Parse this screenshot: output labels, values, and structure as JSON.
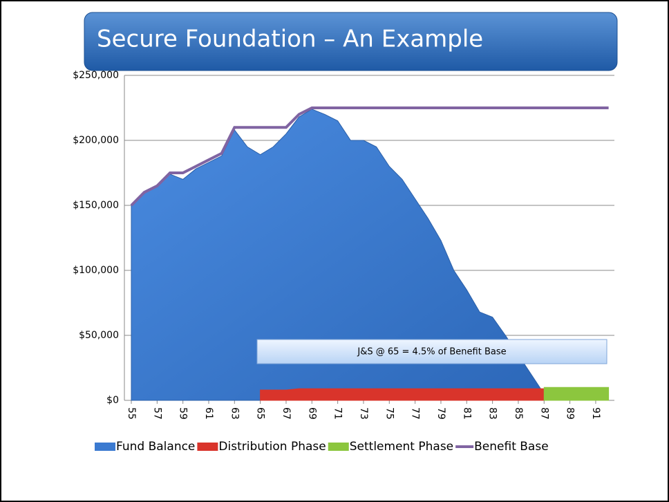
{
  "chart_data": {
    "type": "area",
    "title": "Secure Foundation – An Example",
    "annotation": "J&S @ 65 = 4.5% of Benefit Base",
    "x": [
      55,
      56,
      57,
      58,
      59,
      60,
      61,
      62,
      63,
      64,
      65,
      66,
      67,
      68,
      69,
      70,
      71,
      72,
      73,
      74,
      75,
      76,
      77,
      78,
      79,
      80,
      81,
      82,
      83,
      84,
      85,
      86,
      87,
      88,
      89,
      90,
      91,
      92
    ],
    "xlim": [
      54.5,
      92.5
    ],
    "xticks": [
      55,
      57,
      59,
      61,
      63,
      65,
      67,
      69,
      71,
      73,
      75,
      77,
      79,
      81,
      83,
      85,
      87,
      89,
      91
    ],
    "ylim": [
      0,
      250000
    ],
    "yticks": [
      {
        "value": 0,
        "label": "$0"
      },
      {
        "value": 50000,
        "label": "$50,000"
      },
      {
        "value": 100000,
        "label": "$100,000"
      },
      {
        "value": 150000,
        "label": "$150,000"
      },
      {
        "value": 200000,
        "label": "$200,000"
      },
      {
        "value": 250000,
        "label": "$250,000"
      }
    ],
    "grid": true,
    "legend": "bottom",
    "series": [
      {
        "name": "Fund Balance",
        "color": "#3b7ad0",
        "kind": "area",
        "values": [
          150000,
          160000,
          165000,
          174000,
          170000,
          178000,
          183000,
          188000,
          208000,
          195000,
          189000,
          195000,
          205000,
          218000,
          224000,
          220000,
          215000,
          200000,
          200000,
          195000,
          180000,
          170000,
          155000,
          140000,
          123000,
          100000,
          85000,
          68000,
          64000,
          50000,
          35000,
          20000,
          5000,
          null,
          null,
          null,
          null,
          null
        ]
      },
      {
        "name": "Distribution Phase",
        "color": "#d9342b",
        "kind": "area",
        "values": [
          null,
          null,
          null,
          null,
          null,
          null,
          null,
          null,
          null,
          null,
          8000,
          8000,
          8000,
          9000,
          9000,
          9000,
          9000,
          9000,
          9000,
          9000,
          9000,
          9000,
          9000,
          9000,
          9000,
          9000,
          9000,
          9000,
          9000,
          9000,
          9000,
          9000,
          9000,
          null,
          null,
          null,
          null,
          null
        ]
      },
      {
        "name": "Settlement Phase",
        "color": "#8cc63e",
        "kind": "area",
        "values": [
          null,
          null,
          null,
          null,
          null,
          null,
          null,
          null,
          null,
          null,
          null,
          null,
          null,
          null,
          null,
          null,
          null,
          null,
          null,
          null,
          null,
          null,
          null,
          null,
          null,
          null,
          null,
          null,
          null,
          null,
          null,
          null,
          10000,
          10000,
          10000,
          10000,
          10000,
          10000
        ]
      },
      {
        "name": "Benefit Base",
        "color": "#8064a2",
        "kind": "line",
        "values": [
          150000,
          160000,
          165000,
          175000,
          175000,
          180000,
          185000,
          190000,
          210000,
          210000,
          210000,
          210000,
          210000,
          220000,
          225000,
          225000,
          225000,
          225000,
          225000,
          225000,
          225000,
          225000,
          225000,
          225000,
          225000,
          225000,
          225000,
          225000,
          225000,
          225000,
          225000,
          225000,
          225000,
          225000,
          225000,
          225000,
          225000,
          225000
        ]
      }
    ]
  }
}
